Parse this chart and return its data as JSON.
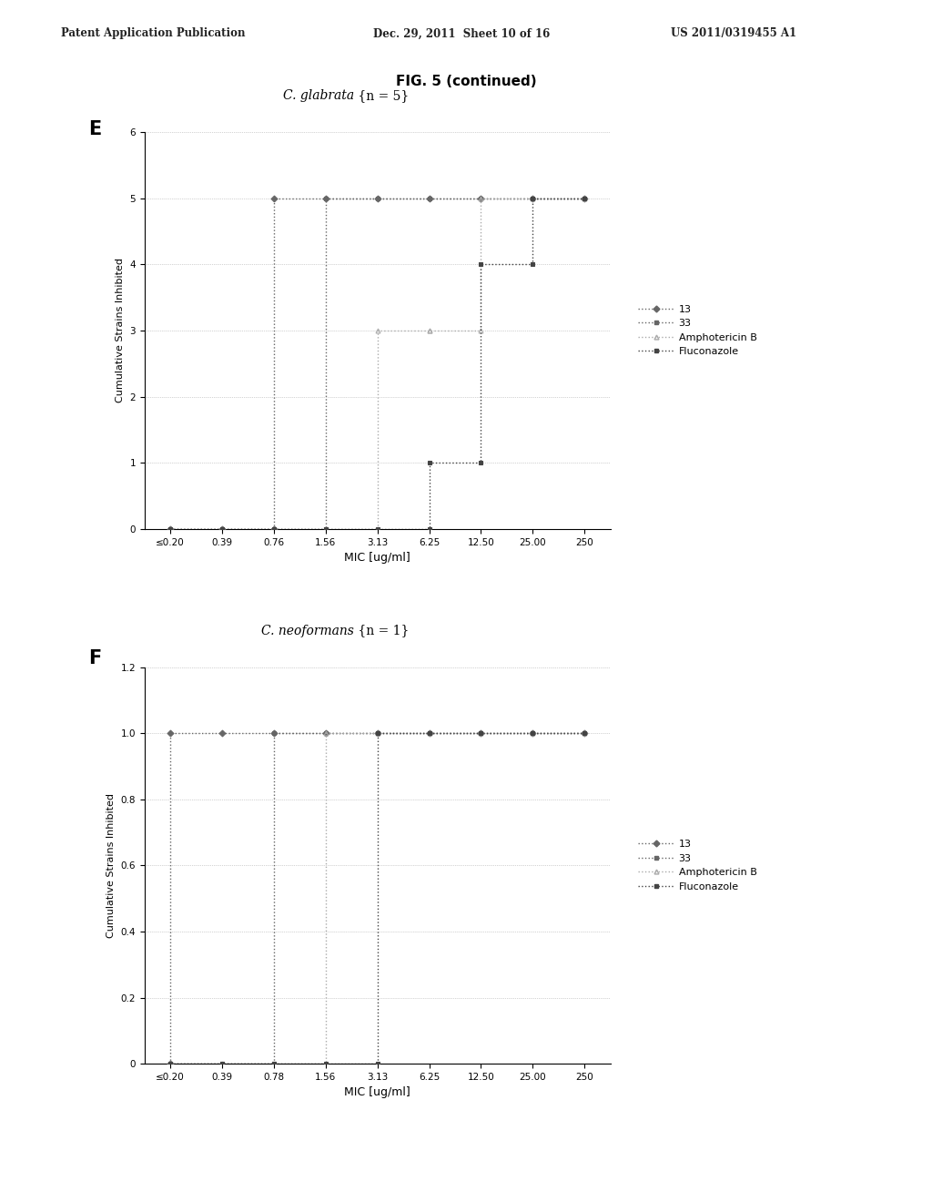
{
  "fig_title": "FIG. 5 (continued)",
  "header_left": "Patent Application Publication",
  "header_mid": "Dec. 29, 2011  Sheet 10 of 16",
  "header_right": "US 2011/0319455 A1",
  "panel_E_label": "E",
  "panel_F_label": "F",
  "subplot_E": {
    "title_italic": "C. glabrata",
    "title_normal": " {n = 5}",
    "ylabel": "Cumulative Strains Inhibited",
    "xlabel": "MIC [ug/ml]",
    "ylim": [
      0,
      6
    ],
    "yticks": [
      0,
      1,
      2,
      3,
      4,
      5,
      6
    ],
    "xtick_labels": [
      "≤0.20",
      "0.39",
      "0.76",
      "1.56",
      "3.13",
      "6.25",
      "12.50",
      "25.00",
      "250"
    ],
    "series": {
      "13": {
        "x": [
          0,
          1,
          2,
          2,
          3,
          4,
          5,
          6,
          7,
          8
        ],
        "y": [
          0,
          0,
          0,
          5,
          5,
          5,
          5,
          5,
          5,
          5
        ],
        "color": "#666666",
        "label": "13",
        "marker": "D"
      },
      "33": {
        "x": [
          0,
          1,
          2,
          3,
          3,
          4,
          5,
          6,
          7,
          8
        ],
        "y": [
          0,
          0,
          0,
          0,
          5,
          5,
          5,
          5,
          5,
          5
        ],
        "color": "#666666",
        "label": "33",
        "marker": "s"
      },
      "AmpB": {
        "x": [
          0,
          1,
          2,
          3,
          4,
          4,
          5,
          5,
          6,
          6,
          7,
          8
        ],
        "y": [
          0,
          0,
          0,
          0,
          0,
          3,
          3,
          3,
          3,
          5,
          5,
          5
        ],
        "color": "#aaaaaa",
        "label": "Amphotericin B",
        "marker": "^"
      },
      "Fluco": {
        "x": [
          0,
          1,
          2,
          3,
          4,
          5,
          5,
          6,
          6,
          7,
          7,
          8
        ],
        "y": [
          0,
          0,
          0,
          0,
          0,
          0,
          1,
          1,
          4,
          4,
          5,
          5
        ],
        "color": "#444444",
        "label": "Fluconazole",
        "marker": "s"
      }
    }
  },
  "subplot_F": {
    "title_italic": "C. neoformans",
    "title_normal": " {n = 1}",
    "ylabel": "Cumulative Strains Inhibited",
    "xlabel": "MIC [ug/ml]",
    "ylim": [
      0,
      1.2
    ],
    "yticks": [
      0,
      0.2,
      0.4,
      0.6,
      0.8,
      1.0,
      1.2
    ],
    "xtick_labels": [
      "≤0.20",
      "0.39",
      "0.78",
      "1.56",
      "3.13",
      "6.25",
      "12.50",
      "25.00",
      "250"
    ],
    "series": {
      "13": {
        "x": [
          0,
          0,
          1,
          2,
          3,
          4,
          5,
          6,
          7,
          8
        ],
        "y": [
          0,
          1,
          1,
          1,
          1,
          1,
          1,
          1,
          1,
          1
        ],
        "color": "#666666",
        "label": "13",
        "marker": "D"
      },
      "33": {
        "x": [
          0,
          1,
          2,
          2,
          3,
          4,
          5,
          6,
          7,
          8
        ],
        "y": [
          0,
          0,
          0,
          1,
          1,
          1,
          1,
          1,
          1,
          1
        ],
        "color": "#666666",
        "label": "33",
        "marker": "s"
      },
      "AmpB": {
        "x": [
          0,
          1,
          2,
          3,
          3,
          4,
          5,
          6,
          7,
          8
        ],
        "y": [
          0,
          0,
          0,
          0,
          1,
          1,
          1,
          1,
          1,
          1
        ],
        "color": "#aaaaaa",
        "label": "Amphotericin B",
        "marker": "^"
      },
      "Fluco": {
        "x": [
          0,
          1,
          2,
          3,
          4,
          4,
          5,
          6,
          7,
          8
        ],
        "y": [
          0,
          0,
          0,
          0,
          0,
          1,
          1,
          1,
          1,
          1
        ],
        "color": "#444444",
        "label": "Fluconazole",
        "marker": "s"
      }
    }
  },
  "background_color": "#ffffff"
}
